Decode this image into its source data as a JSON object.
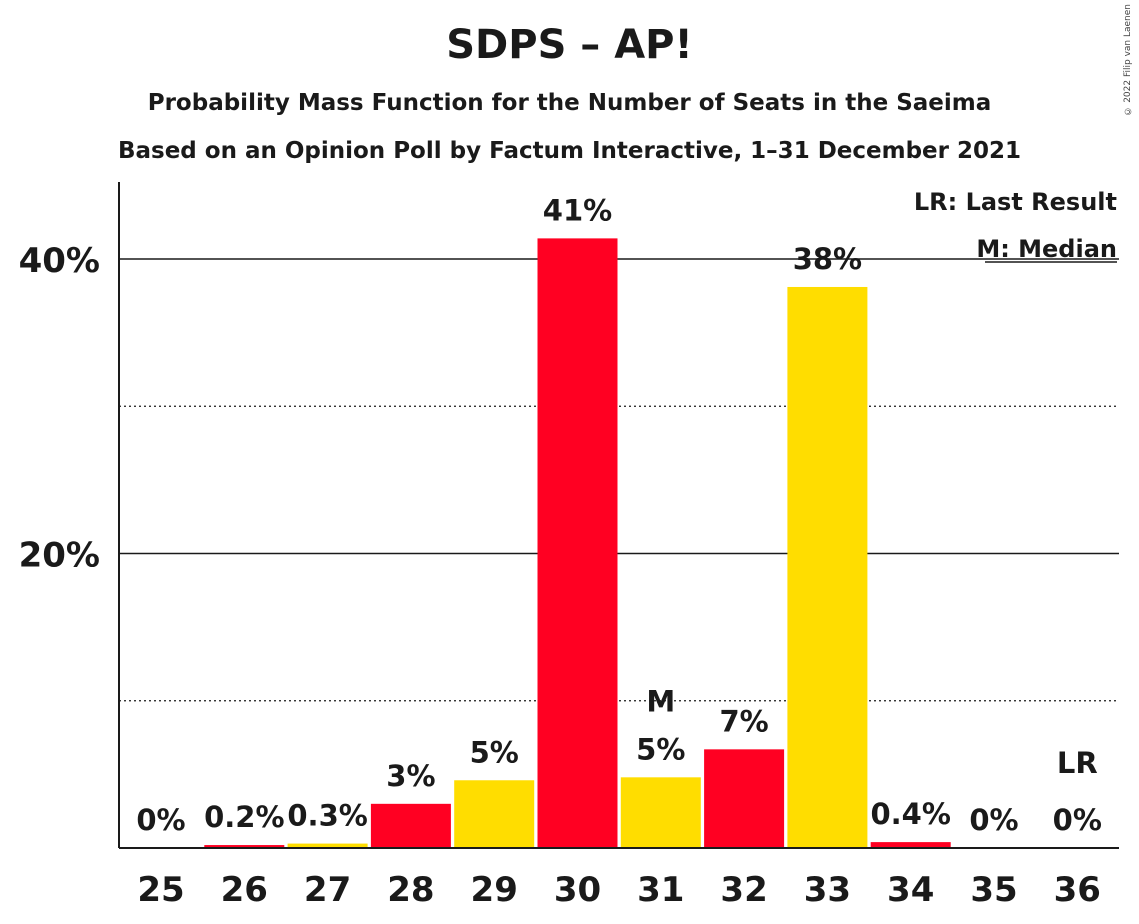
{
  "title": "SDPS – AP!",
  "subtitle_1": "Probability Mass Function for the Number of Seats in the Saeima",
  "subtitle_2": "Based on an Opinion Poll by Factum Interactive, 1–31 December 2021",
  "copyright": "© 2022 Filip van Laenen",
  "legend": {
    "last_result": "LR: Last Result",
    "median": "M: Median"
  },
  "colors": {
    "red": "#ff0022",
    "yellow": "#ffdd00"
  },
  "chart_data": {
    "type": "bar",
    "categories": [
      "25",
      "26",
      "27",
      "28",
      "29",
      "30",
      "31",
      "32",
      "33",
      "34",
      "35",
      "36"
    ],
    "values": [
      0,
      0.2,
      0.3,
      3,
      4.6,
      41.4,
      4.8,
      6.7,
      38.1,
      0.4,
      0,
      0
    ],
    "labels": [
      "0%",
      "0.2%",
      "0.3%",
      "3%",
      "5%",
      "41%",
      "5%",
      "7%",
      "38%",
      "0.4%",
      "0%",
      "0%"
    ],
    "bar_colors": [
      "red",
      "red",
      "yellow",
      "red",
      "yellow",
      "red",
      "yellow",
      "red",
      "yellow",
      "red",
      "yellow",
      "red"
    ],
    "ylim": [
      0,
      45
    ],
    "yticks": [
      20,
      40
    ],
    "ytick_labels": [
      "20%",
      "40%"
    ],
    "dotted_gridlines": [
      10,
      30
    ],
    "median_category": "31",
    "median_marker": "M",
    "last_result_category": "36",
    "last_result_marker": "LR",
    "legend_position": "top-right"
  }
}
